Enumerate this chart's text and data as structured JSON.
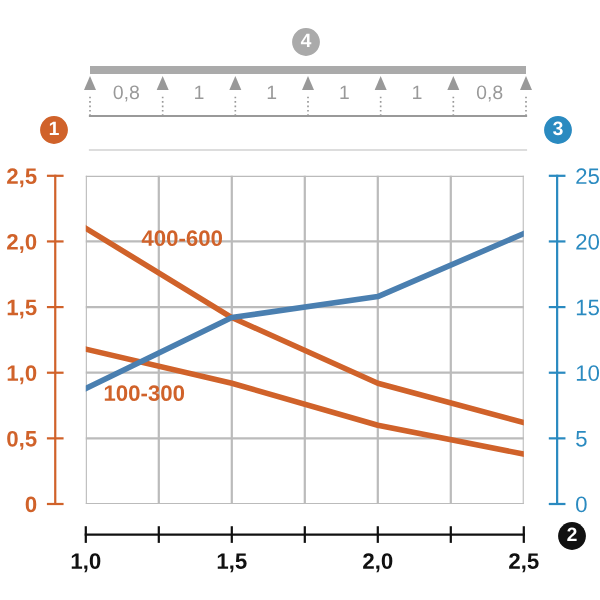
{
  "chart_data": {
    "type": "line",
    "xlabel": "2",
    "ylabel": "1",
    "y2label": "3",
    "x": [
      1.0,
      1.5,
      2.0,
      2.5
    ],
    "series": [
      {
        "name": "400-600",
        "color": "#d0622a",
        "values": [
          2.1,
          1.42,
          0.92,
          0.62
        ]
      },
      {
        "name": "100-300",
        "color": "#d0622a",
        "values": [
          1.18,
          0.92,
          0.6,
          0.38
        ]
      },
      {
        "color": "#4a7fb0",
        "axis": "y2",
        "values": [
          8.8,
          14.2,
          15.8,
          20.6
        ]
      }
    ],
    "xlim": [
      1.0,
      2.5
    ],
    "xticks": [
      {
        "value": 1.0,
        "label": "1,0"
      },
      {
        "value": 1.25,
        "label": null
      },
      {
        "value": 1.5,
        "label": "1,5"
      },
      {
        "value": 1.75,
        "label": null
      },
      {
        "value": 2.0,
        "label": "2,0"
      },
      {
        "value": 2.25,
        "label": null
      },
      {
        "value": 2.5,
        "label": "2,5"
      }
    ],
    "ylim": [
      0,
      2.5
    ],
    "yticks": [
      0,
      {
        "value": 0.5,
        "label": "0,5"
      },
      {
        "value": 1.0,
        "label": "1,0"
      },
      {
        "value": 1.5,
        "label": "1,5"
      },
      {
        "value": 2.0,
        "label": "2,0"
      },
      {
        "value": 2.5,
        "label": "2,5"
      }
    ],
    "y2lim": [
      0,
      25
    ],
    "y2ticks": [
      0,
      5,
      10,
      15,
      20,
      25
    ],
    "grid": true,
    "legend": false,
    "marker": "none",
    "line_style": "solid",
    "annotations": [
      "0,8",
      "1",
      "1",
      "1",
      "1",
      "0,8",
      "4"
    ]
  }
}
